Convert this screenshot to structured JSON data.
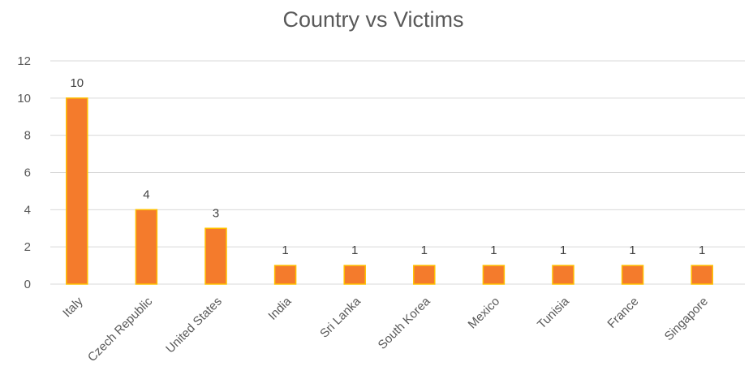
{
  "chart_data": {
    "type": "bar",
    "title": "Country vs Victims",
    "xlabel": "",
    "ylabel": "",
    "categories": [
      "Italy",
      "Czech Republic",
      "United States",
      "India",
      "Sri Lanka",
      "South Korea",
      "Mexico",
      "Tunisia",
      "France",
      "Singapore"
    ],
    "values": [
      10,
      4,
      3,
      1,
      1,
      1,
      1,
      1,
      1,
      1
    ],
    "ylim": [
      0,
      12
    ],
    "yticks": [
      0,
      2,
      4,
      6,
      8,
      10,
      12
    ],
    "grid": true,
    "data_labels": true,
    "legend": "none",
    "colors": {
      "bar_fill": "#f47b2c",
      "bar_edge": "#ffc000",
      "grid": "#d9d9d9",
      "text": "#595959"
    }
  }
}
